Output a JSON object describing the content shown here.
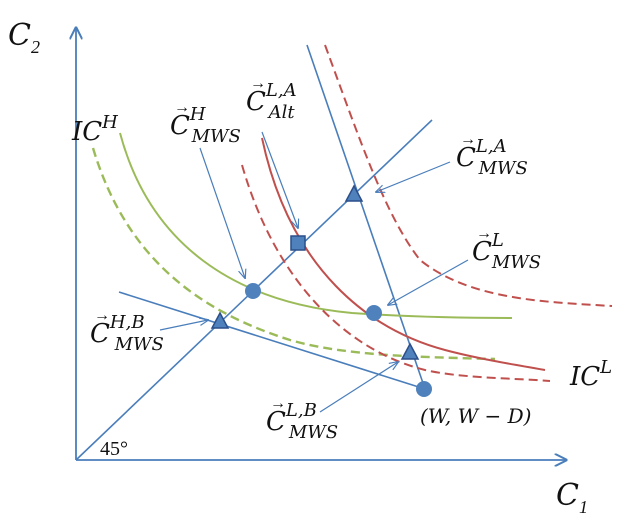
{
  "axes": {
    "y_symbol": "C",
    "y_sub": "2",
    "x_symbol": "C",
    "x_sub": "1",
    "angle_label": "45°"
  },
  "curves": {
    "ic_h": {
      "base": "IC",
      "sup": "H"
    },
    "ic_l": {
      "base": "IC",
      "sup": "L"
    }
  },
  "points": {
    "c_mws_h": {
      "base": "C",
      "sup": "H",
      "sub": "MWS"
    },
    "c_alt_la": {
      "base": "C",
      "sup": "L,A",
      "sub": "Alt"
    },
    "c_mws_la": {
      "base": "C",
      "sup": "L,A",
      "sub": "MWS"
    },
    "c_mws_l": {
      "base": "C",
      "sup": "L",
      "sub": "MWS"
    },
    "c_mws_hb": {
      "base": "C",
      "sup": "H,B",
      "sub": "MWS"
    },
    "c_mws_lb": {
      "base": "C",
      "sup": "L,B",
      "sub": "MWS"
    },
    "endowment": "(W, W − D)"
  },
  "vector_arrow": "→",
  "colors": {
    "axis": "#4a7ebb",
    "line": "#4a7ebb",
    "ic_high": "#9bbb59",
    "ic_low": "#c0504d",
    "marker": "#4f81bd",
    "marker_stroke": "#2c4f8a"
  }
}
